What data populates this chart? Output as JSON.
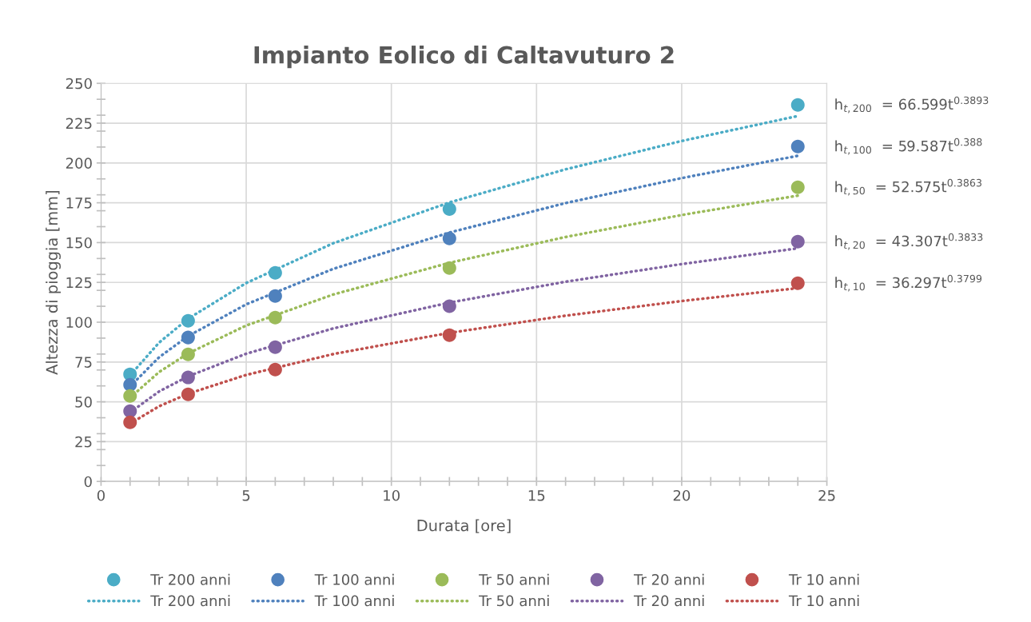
{
  "chart_data": {
    "type": "scatter",
    "title": "Impianto Eolico di Caltavuturo 2",
    "xlabel": "Durata [ore]",
    "ylabel": "Altezza di pioggia [mm]",
    "x": [
      1,
      3,
      6,
      12,
      24
    ],
    "series": [
      {
        "name": "Tr 200 anni",
        "color": "#4bacc6",
        "values": [
          67.3,
          100.9,
          131,
          171,
          236.5
        ]
      },
      {
        "name": "Tr 100 anni",
        "color": "#4f81bd",
        "values": [
          60.7,
          90.4,
          116.5,
          152.6,
          210.3
        ]
      },
      {
        "name": "Tr 50 anni",
        "color": "#9bbb59",
        "values": [
          53.7,
          79.8,
          102.9,
          134,
          184.7
        ]
      },
      {
        "name": "Tr 20 anni",
        "color": "#8064a2",
        "values": [
          44.2,
          65.3,
          84.3,
          110,
          150.6
        ]
      },
      {
        "name": "Tr 10 anni",
        "color": "#c0504d",
        "values": [
          37.1,
          54.7,
          70.3,
          91.9,
          124.5
        ]
      },
      {
        "name": "Tr 200 anni",
        "type": "line",
        "line_style": "dotted",
        "marker": "none",
        "color": "#4bacc6",
        "x": [
          1,
          2,
          3,
          5,
          8,
          12,
          16,
          20,
          24
        ],
        "values": [
          66.6,
          87.2,
          102.2,
          124.6,
          149.6,
          175.2,
          196.0,
          213.8,
          229.5
        ]
      },
      {
        "name": "Tr 100 anni",
        "type": "line",
        "line_style": "dotted",
        "marker": "none",
        "color": "#4f81bd",
        "x": [
          1,
          2,
          3,
          5,
          8,
          12,
          16,
          20,
          24
        ],
        "values": [
          59.6,
          78.0,
          91.3,
          111.2,
          133.5,
          156.3,
          174.8,
          190.5,
          204.5
        ]
      },
      {
        "name": "Tr 50 anni",
        "type": "line",
        "line_style": "dotted",
        "marker": "none",
        "color": "#9bbb59",
        "x": [
          1,
          2,
          3,
          5,
          8,
          12,
          16,
          20,
          24
        ],
        "values": [
          52.6,
          68.7,
          80.4,
          97.9,
          117.4,
          137.3,
          153.5,
          167.3,
          179.5
        ]
      },
      {
        "name": "Tr 20 anni",
        "type": "line",
        "line_style": "dotted",
        "marker": "none",
        "color": "#8064a2",
        "x": [
          1,
          2,
          3,
          5,
          8,
          12,
          16,
          20,
          24
        ],
        "values": [
          43.3,
          56.5,
          66.0,
          80.2,
          96.1,
          112.3,
          125.4,
          136.5,
          146.4
        ]
      },
      {
        "name": "Tr 10 anni",
        "type": "line",
        "line_style": "dotted",
        "marker": "none",
        "color": "#c0504d",
        "x": [
          1,
          2,
          3,
          5,
          8,
          12,
          16,
          20,
          24
        ],
        "values": [
          36.3,
          47.2,
          55.1,
          66.9,
          80.0,
          93.3,
          104.1,
          113.3,
          121.4
        ]
      }
    ],
    "marker": "circle",
    "xlim": [
      0,
      25
    ],
    "xticks": [
      0,
      {
        "value": 1,
        "label": null
      },
      {
        "value": 2,
        "label": null
      },
      {
        "value": 3,
        "label": null
      },
      {
        "value": 4,
        "label": null
      },
      5,
      {
        "value": 6,
        "label": null
      },
      {
        "value": 7,
        "label": null
      },
      {
        "value": 8,
        "label": null
      },
      {
        "value": 9,
        "label": null
      },
      10,
      {
        "value": 11,
        "label": null
      },
      {
        "value": 12,
        "label": null
      },
      {
        "value": 13,
        "label": null
      },
      {
        "value": 14,
        "label": null
      },
      15,
      {
        "value": 16,
        "label": null
      },
      {
        "value": 17,
        "label": null
      },
      {
        "value": 18,
        "label": null
      },
      {
        "value": 19,
        "label": null
      },
      20,
      {
        "value": 21,
        "label": null
      },
      {
        "value": 22,
        "label": null
      },
      {
        "value": 23,
        "label": null
      },
      {
        "value": 24,
        "label": null
      },
      25
    ],
    "ylim": [
      0,
      250
    ],
    "yticks": [
      0,
      {
        "value": 10,
        "label": null
      },
      {
        "value": 20,
        "label": null
      },
      25,
      {
        "value": 30,
        "label": null
      },
      {
        "value": 40,
        "label": null
      },
      50,
      {
        "value": 60,
        "label": null
      },
      {
        "value": 70,
        "label": null
      },
      75,
      {
        "value": 80,
        "label": null
      },
      {
        "value": 90,
        "label": null
      },
      100,
      {
        "value": 110,
        "label": null
      },
      {
        "value": 120,
        "label": null
      },
      125,
      {
        "value": 130,
        "label": null
      },
      {
        "value": 140,
        "label": null
      },
      150,
      {
        "value": 160,
        "label": null
      },
      {
        "value": 170,
        "label": null
      },
      175,
      {
        "value": 180,
        "label": null
      },
      {
        "value": 190,
        "label": null
      },
      200,
      {
        "value": 210,
        "label": null
      },
      {
        "value": 220,
        "label": null
      },
      225,
      {
        "value": 230,
        "label": null
      },
      {
        "value": 240,
        "label": null
      },
      250
    ],
    "grid": true,
    "legend": "bottom",
    "annotations": [
      "h$_{t,200}$  = 66.599t$^{0.3893}$",
      "h$_{t,100}$  = 59.587t$^{0.388}$",
      "h$_{t,50}$  = 52.575t$^{0.3863}$",
      "h$_{t,20}$  = 43.307t$^{0.3833}$",
      "h$_{t,10}$  = 36.297t$^{0.3799}$"
    ]
  }
}
